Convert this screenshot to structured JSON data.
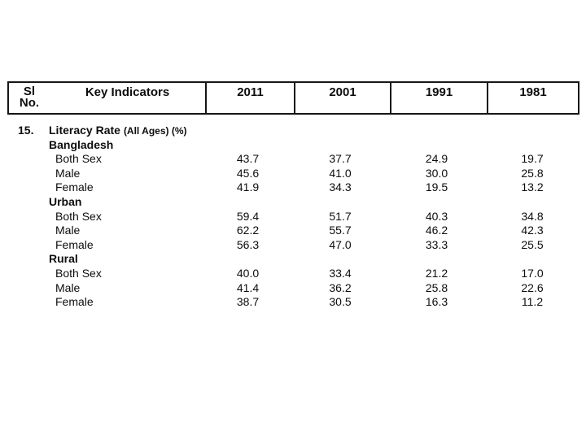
{
  "page": {
    "background": "#ffffff",
    "text_color": "#0d0d0d",
    "border_color": "#161616"
  },
  "table": {
    "header": {
      "sl_no_line1": "Sl",
      "sl_no_line2": "No.",
      "key_indicators": "Key Indicators",
      "years": [
        "2011",
        "2001",
        "1991",
        "1981"
      ]
    },
    "section_number": "15.",
    "section_title": "Literacy Rate",
    "section_title_note": "(All Ages) (%)",
    "rows": [
      {
        "type": "title",
        "number": "15.",
        "label": "Literacy Rate",
        "note": "(All Ages) (%)",
        "values": [
          "",
          "",
          "",
          ""
        ]
      },
      {
        "type": "group",
        "label": "Bangladesh",
        "values": [
          "",
          "",
          "",
          ""
        ]
      },
      {
        "type": "data",
        "label": "Both Sex",
        "values": [
          "43.7",
          "37.7",
          "24.9",
          "19.7"
        ]
      },
      {
        "type": "data",
        "label": "Male",
        "values": [
          "45.6",
          "41.0",
          "30.0",
          "25.8"
        ]
      },
      {
        "type": "data",
        "label": "Female",
        "values": [
          "41.9",
          "34.3",
          "19.5",
          "13.2"
        ]
      },
      {
        "type": "group",
        "label": "Urban",
        "values": [
          "",
          "",
          "",
          ""
        ]
      },
      {
        "type": "data",
        "label": "Both Sex",
        "values": [
          "59.4",
          "51.7",
          "40.3",
          "34.8"
        ]
      },
      {
        "type": "data",
        "label": "Male",
        "values": [
          "62.2",
          "55.7",
          "46.2",
          "42.3"
        ]
      },
      {
        "type": "data",
        "label": "Female",
        "values": [
          "56.3",
          "47.0",
          "33.3",
          "25.5"
        ]
      },
      {
        "type": "group",
        "label": "Rural",
        "values": [
          "",
          "",
          "",
          ""
        ]
      },
      {
        "type": "data",
        "label": "Both Sex",
        "values": [
          "40.0",
          "33.4",
          "21.2",
          "17.0"
        ]
      },
      {
        "type": "data",
        "label": "Male",
        "values": [
          "41.4",
          "36.2",
          "25.8",
          "22.6"
        ]
      },
      {
        "type": "data",
        "label": "Female",
        "values": [
          "38.7",
          "30.5",
          "16.3",
          "11.2"
        ]
      }
    ]
  }
}
